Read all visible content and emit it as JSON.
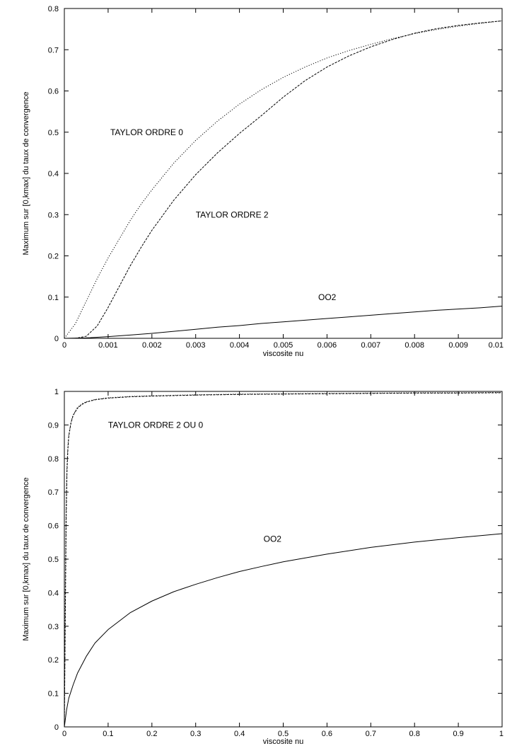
{
  "chart_data": [
    {
      "type": "line",
      "xlabel": "viscosite nu",
      "ylabel": "Maximum sur [0,kmax] du taux de convergence",
      "xlim": [
        0,
        0.01
      ],
      "ylim": [
        0,
        0.8
      ],
      "xticks": [
        "0",
        "0.001",
        "0.002",
        "0.003",
        "0.004",
        "0.005",
        "0.006",
        "0.007",
        "0.008",
        "0.009",
        "0.01"
      ],
      "yticks": [
        "0",
        "0.1",
        "0.2",
        "0.3",
        "0.4",
        "0.5",
        "0.6",
        "0.7",
        "0.8"
      ],
      "grid": false,
      "annotations": [
        {
          "text": "TAYLOR ORDRE 0",
          "x": 0.00105,
          "y": 0.5
        },
        {
          "text": "TAYLOR ORDRE 2",
          "x": 0.003,
          "y": 0.3
        },
        {
          "text": "OO2",
          "x": 0.0058,
          "y": 0.1
        }
      ],
      "series": [
        {
          "style": "dotted",
          "x": [
            0,
            0.00025,
            0.0005,
            0.00075,
            0.001,
            0.00125,
            0.0015,
            0.00175,
            0.002,
            0.0025,
            0.003,
            0.0035,
            0.004,
            0.0045,
            0.005,
            0.0055,
            0.006,
            0.0065,
            0.007,
            0.0075,
            0.008,
            0.0085,
            0.009,
            0.0095,
            0.01
          ],
          "y": [
            0.0,
            0.035,
            0.09,
            0.145,
            0.195,
            0.24,
            0.285,
            0.325,
            0.36,
            0.425,
            0.48,
            0.527,
            0.568,
            0.603,
            0.633,
            0.658,
            0.68,
            0.698,
            0.713,
            0.727,
            0.739,
            0.749,
            0.757,
            0.764,
            0.77
          ]
        },
        {
          "style": "dashed",
          "x": [
            0,
            0.00025,
            0.0005,
            0.00075,
            0.001,
            0.00125,
            0.0015,
            0.00175,
            0.002,
            0.0025,
            0.003,
            0.0035,
            0.004,
            0.0045,
            0.005,
            0.0055,
            0.006,
            0.0065,
            0.007,
            0.0075,
            0.008,
            0.0085,
            0.009,
            0.0095,
            0.01
          ],
          "y": [
            0.0,
            0.0,
            0.005,
            0.03,
            0.075,
            0.125,
            0.175,
            0.22,
            0.262,
            0.335,
            0.397,
            0.45,
            0.497,
            0.54,
            0.585,
            0.625,
            0.658,
            0.685,
            0.707,
            0.725,
            0.74,
            0.751,
            0.759,
            0.765,
            0.77
          ]
        },
        {
          "style": "solid",
          "x": [
            0,
            0.0005,
            0.001,
            0.0015,
            0.002,
            0.0025,
            0.003,
            0.0035,
            0.004,
            0.0045,
            0.005,
            0.0055,
            0.006,
            0.0065,
            0.007,
            0.0075,
            0.008,
            0.0085,
            0.009,
            0.0095,
            0.01
          ],
          "y": [
            0.0,
            0.001,
            0.004,
            0.008,
            0.012,
            0.017,
            0.022,
            0.027,
            0.031,
            0.036,
            0.04,
            0.044,
            0.048,
            0.052,
            0.056,
            0.06,
            0.064,
            0.068,
            0.071,
            0.074,
            0.078
          ]
        }
      ]
    },
    {
      "type": "line",
      "xlabel": "viscosite nu",
      "ylabel": "Maximum sur [0,kmax] du taux de convergence",
      "xlim": [
        0,
        1
      ],
      "ylim": [
        0,
        1
      ],
      "xticks": [
        "0",
        "0.1",
        "0.2",
        "0.3",
        "0.4",
        "0.5",
        "0.6",
        "0.7",
        "0.8",
        "0.9",
        "1"
      ],
      "yticks": [
        "0",
        "0.1",
        "0.2",
        "0.3",
        "0.4",
        "0.5",
        "0.6",
        "0.7",
        "0.8",
        "0.9",
        "1"
      ],
      "grid": false,
      "annotations": [
        {
          "text": "TAYLOR ORDRE 2 OU 0",
          "x": 0.1,
          "y": 0.9
        },
        {
          "text": "OO2",
          "x": 0.455,
          "y": 0.56
        }
      ],
      "series": [
        {
          "style": "dotted",
          "x": [
            0,
            0.002,
            0.004,
            0.006,
            0.008,
            0.01,
            0.015,
            0.02,
            0.03,
            0.04,
            0.05,
            0.07,
            0.1,
            0.15,
            0.2,
            0.3,
            0.4,
            0.5,
            0.6,
            0.7,
            0.8,
            0.9,
            1.0
          ],
          "y": [
            0.0,
            0.4,
            0.66,
            0.78,
            0.835,
            0.87,
            0.908,
            0.93,
            0.952,
            0.963,
            0.969,
            0.976,
            0.981,
            0.985,
            0.987,
            0.99,
            0.992,
            0.993,
            0.994,
            0.995,
            0.996,
            0.996,
            0.997
          ]
        },
        {
          "style": "dashed",
          "x": [
            0,
            0.002,
            0.004,
            0.006,
            0.008,
            0.01,
            0.015,
            0.02,
            0.03,
            0.04,
            0.05,
            0.07,
            0.1,
            0.15,
            0.2,
            0.3,
            0.4,
            0.5,
            0.6,
            0.7,
            0.8,
            0.9,
            1.0
          ],
          "y": [
            0.0,
            0.3,
            0.6,
            0.76,
            0.825,
            0.865,
            0.905,
            0.928,
            0.95,
            0.961,
            0.968,
            0.975,
            0.98,
            0.984,
            0.986,
            0.989,
            0.991,
            0.992,
            0.993,
            0.994,
            0.995,
            0.995,
            0.996
          ]
        },
        {
          "style": "solid",
          "x": [
            0,
            0.005,
            0.01,
            0.02,
            0.03,
            0.05,
            0.07,
            0.1,
            0.15,
            0.2,
            0.25,
            0.3,
            0.35,
            0.4,
            0.45,
            0.5,
            0.6,
            0.7,
            0.8,
            0.9,
            1.0
          ],
          "y": [
            0.0,
            0.05,
            0.085,
            0.125,
            0.16,
            0.21,
            0.25,
            0.29,
            0.34,
            0.375,
            0.403,
            0.425,
            0.445,
            0.463,
            0.478,
            0.492,
            0.515,
            0.535,
            0.551,
            0.564,
            0.576
          ]
        }
      ]
    }
  ]
}
